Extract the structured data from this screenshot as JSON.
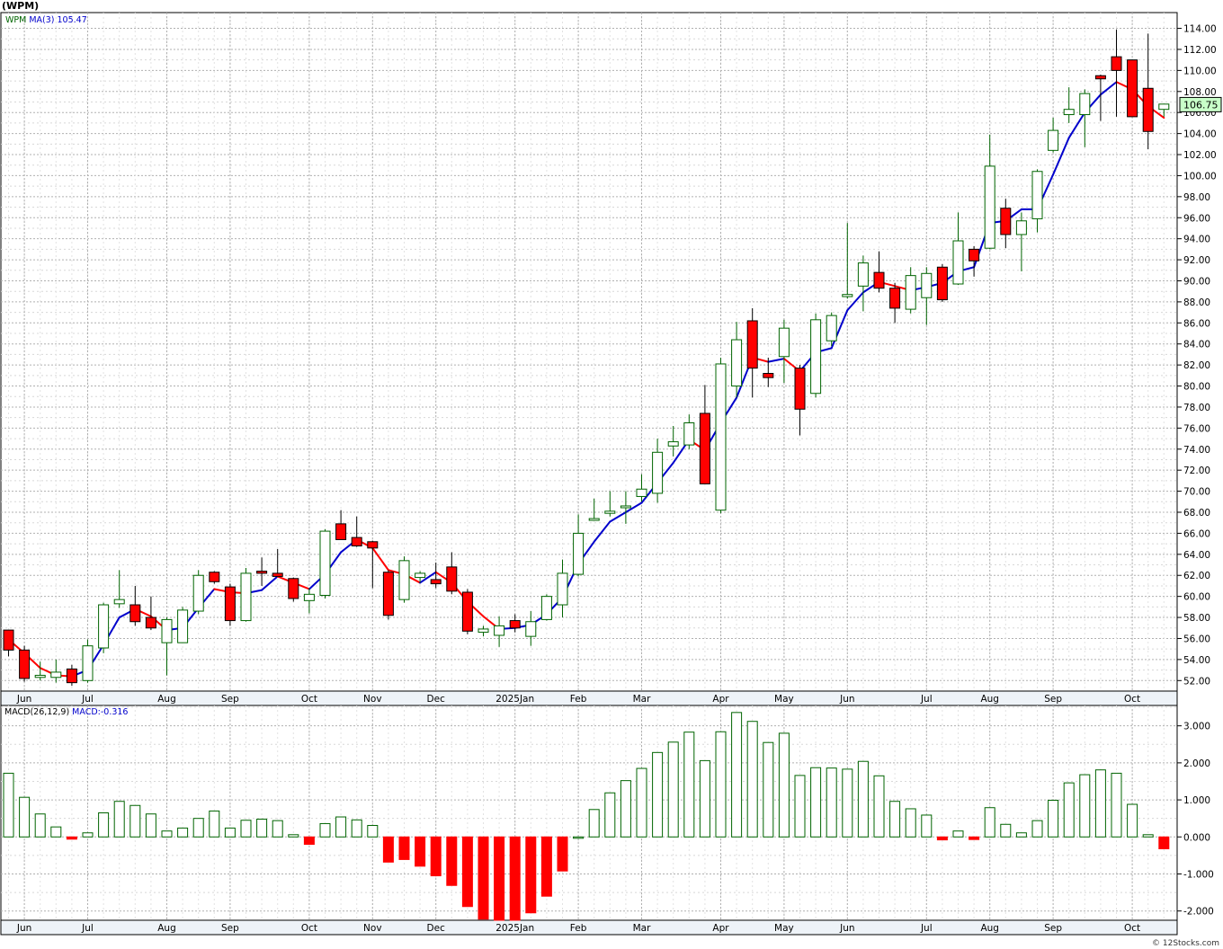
{
  "title": "(WPM)",
  "footer": "© 12Stocks.com",
  "colors": {
    "up": "#006400",
    "down": "#ff0000",
    "ma_up": "#0000cc",
    "ma_down": "#ff0000",
    "grid": "#b0b0b0",
    "last_bg": "#c8ffc8"
  },
  "chart_data": [
    {
      "type": "candlestick",
      "title": "(WPM)",
      "legend": {
        "symbol": "WPM",
        "ma_label": "MA(3)",
        "ma_value": "105.47"
      },
      "last_price_label": "106.75",
      "ylim": [
        51,
        115.5
      ],
      "y_ticks": [
        "52.00",
        "54.00",
        "56.00",
        "58.00",
        "60.00",
        "62.00",
        "64.00",
        "66.00",
        "68.00",
        "70.00",
        "72.00",
        "74.00",
        "76.00",
        "78.00",
        "80.00",
        "82.00",
        "84.00",
        "86.00",
        "88.00",
        "90.00",
        "92.00",
        "94.00",
        "96.00",
        "98.00",
        "100.00",
        "102.00",
        "104.00",
        "106.00",
        "108.00",
        "110.00",
        "112.00",
        "114.00"
      ],
      "x_labels": [
        {
          "label": "Jun",
          "i": 1
        },
        {
          "label": "Jul",
          "i": 5
        },
        {
          "label": "Aug",
          "i": 10
        },
        {
          "label": "Sep",
          "i": 14
        },
        {
          "label": "Oct",
          "i": 19
        },
        {
          "label": "Nov",
          "i": 23
        },
        {
          "label": "Dec",
          "i": 27
        },
        {
          "label": "2025Jan",
          "i": 32
        },
        {
          "label": "Feb",
          "i": 36
        },
        {
          "label": "Mar",
          "i": 40
        },
        {
          "label": "Apr",
          "i": 45
        },
        {
          "label": "May",
          "i": 49
        },
        {
          "label": "Jun",
          "i": 53
        },
        {
          "label": "Jul",
          "i": 58
        },
        {
          "label": "Aug",
          "i": 62
        },
        {
          "label": "Sep",
          "i": 66
        },
        {
          "label": "Oct",
          "i": 71
        }
      ],
      "candles": [
        {
          "o": 56.8,
          "h": 56.8,
          "l": 54.3,
          "c": 54.9
        },
        {
          "o": 54.9,
          "h": 55.3,
          "l": 51.9,
          "c": 52.2
        },
        {
          "o": 52.3,
          "h": 53.8,
          "l": 52.0,
          "c": 52.5
        },
        {
          "o": 52.3,
          "h": 54.0,
          "l": 51.8,
          "c": 52.8
        },
        {
          "o": 53.1,
          "h": 53.5,
          "l": 51.5,
          "c": 51.8
        },
        {
          "o": 52.0,
          "h": 55.9,
          "l": 51.8,
          "c": 55.3
        },
        {
          "o": 55.1,
          "h": 59.4,
          "l": 54.6,
          "c": 59.2
        },
        {
          "o": 59.3,
          "h": 62.5,
          "l": 58.9,
          "c": 59.7
        },
        {
          "o": 59.2,
          "h": 61.0,
          "l": 57.2,
          "c": 57.6
        },
        {
          "o": 58.0,
          "h": 60.0,
          "l": 56.8,
          "c": 57.0
        },
        {
          "o": 55.6,
          "h": 58.0,
          "l": 52.5,
          "c": 57.8
        },
        {
          "o": 55.6,
          "h": 59.0,
          "l": 55.6,
          "c": 58.7
        },
        {
          "o": 58.6,
          "h": 62.5,
          "l": 58.3,
          "c": 62.0
        },
        {
          "o": 62.3,
          "h": 62.4,
          "l": 61.2,
          "c": 61.4
        },
        {
          "o": 60.9,
          "h": 61.2,
          "l": 57.2,
          "c": 57.7
        },
        {
          "o": 57.7,
          "h": 62.7,
          "l": 57.6,
          "c": 62.2
        },
        {
          "o": 62.4,
          "h": 63.7,
          "l": 61.0,
          "c": 62.2
        },
        {
          "o": 62.2,
          "h": 64.5,
          "l": 61.9,
          "c": 61.9
        },
        {
          "o": 61.7,
          "h": 61.8,
          "l": 59.5,
          "c": 59.8
        },
        {
          "o": 59.6,
          "h": 60.8,
          "l": 58.4,
          "c": 60.2
        },
        {
          "o": 60.1,
          "h": 66.4,
          "l": 59.8,
          "c": 66.2
        },
        {
          "o": 66.9,
          "h": 68.2,
          "l": 65.4,
          "c": 65.4
        },
        {
          "o": 65.6,
          "h": 67.6,
          "l": 64.7,
          "c": 64.8
        },
        {
          "o": 65.2,
          "h": 65.3,
          "l": 60.8,
          "c": 64.6
        },
        {
          "o": 62.3,
          "h": 62.5,
          "l": 57.8,
          "c": 58.2
        },
        {
          "o": 59.7,
          "h": 63.8,
          "l": 59.4,
          "c": 63.4
        },
        {
          "o": 61.8,
          "h": 62.4,
          "l": 61.3,
          "c": 62.2
        },
        {
          "o": 61.6,
          "h": 63.2,
          "l": 60.8,
          "c": 61.2
        },
        {
          "o": 62.8,
          "h": 64.2,
          "l": 60.2,
          "c": 60.5
        },
        {
          "o": 60.4,
          "h": 60.7,
          "l": 56.4,
          "c": 56.7
        },
        {
          "o": 56.6,
          "h": 57.2,
          "l": 56.2,
          "c": 56.9
        },
        {
          "o": 56.3,
          "h": 58.1,
          "l": 55.2,
          "c": 57.2
        },
        {
          "o": 57.7,
          "h": 58.3,
          "l": 56.6,
          "c": 57.0
        },
        {
          "o": 56.2,
          "h": 58.6,
          "l": 55.3,
          "c": 57.6
        },
        {
          "o": 57.8,
          "h": 60.2,
          "l": 57.7,
          "c": 60.0
        },
        {
          "o": 59.2,
          "h": 63.5,
          "l": 58.0,
          "c": 62.2
        },
        {
          "o": 62.1,
          "h": 67.8,
          "l": 61.9,
          "c": 66.0
        },
        {
          "o": 67.3,
          "h": 69.3,
          "l": 67.2,
          "c": 67.4
        },
        {
          "o": 67.9,
          "h": 70.0,
          "l": 67.6,
          "c": 68.1
        },
        {
          "o": 68.5,
          "h": 70.0,
          "l": 66.9,
          "c": 68.6
        },
        {
          "o": 69.5,
          "h": 71.6,
          "l": 69.0,
          "c": 70.2
        },
        {
          "o": 69.8,
          "h": 75.0,
          "l": 68.9,
          "c": 73.7
        },
        {
          "o": 74.3,
          "h": 76.2,
          "l": 73.3,
          "c": 74.7
        },
        {
          "o": 74.4,
          "h": 77.3,
          "l": 74.0,
          "c": 76.5
        },
        {
          "o": 77.4,
          "h": 80.1,
          "l": 70.7,
          "c": 70.7
        },
        {
          "o": 68.2,
          "h": 82.7,
          "l": 67.9,
          "c": 82.1
        },
        {
          "o": 80.0,
          "h": 86.1,
          "l": 78.9,
          "c": 84.4
        },
        {
          "o": 86.2,
          "h": 87.4,
          "l": 78.9,
          "c": 81.7
        },
        {
          "o": 81.2,
          "h": 82.7,
          "l": 79.9,
          "c": 80.8
        },
        {
          "o": 82.8,
          "h": 86.3,
          "l": 80.3,
          "c": 85.5
        },
        {
          "o": 81.7,
          "h": 82.0,
          "l": 75.3,
          "c": 77.8
        },
        {
          "o": 79.3,
          "h": 86.9,
          "l": 78.9,
          "c": 86.3
        },
        {
          "o": 84.3,
          "h": 87.0,
          "l": 83.8,
          "c": 86.7
        },
        {
          "o": 88.5,
          "h": 95.5,
          "l": 88.3,
          "c": 88.7
        },
        {
          "o": 89.5,
          "h": 92.4,
          "l": 87.1,
          "c": 91.7
        },
        {
          "o": 90.8,
          "h": 92.8,
          "l": 88.9,
          "c": 89.3
        },
        {
          "o": 89.3,
          "h": 89.8,
          "l": 86.0,
          "c": 87.4
        },
        {
          "o": 87.3,
          "h": 91.3,
          "l": 86.9,
          "c": 90.5
        },
        {
          "o": 88.4,
          "h": 91.3,
          "l": 85.8,
          "c": 90.7
        },
        {
          "o": 91.3,
          "h": 91.6,
          "l": 88.0,
          "c": 88.2
        },
        {
          "o": 89.7,
          "h": 96.5,
          "l": 89.6,
          "c": 93.8
        },
        {
          "o": 93.0,
          "h": 93.3,
          "l": 90.4,
          "c": 91.9
        },
        {
          "o": 93.1,
          "h": 103.9,
          "l": 93.0,
          "c": 100.9
        },
        {
          "o": 96.9,
          "h": 97.8,
          "l": 93.1,
          "c": 94.4
        },
        {
          "o": 94.4,
          "h": 96.5,
          "l": 90.9,
          "c": 95.7
        },
        {
          "o": 95.9,
          "h": 100.6,
          "l": 94.6,
          "c": 100.4
        },
        {
          "o": 102.4,
          "h": 105.5,
          "l": 102.2,
          "c": 104.3
        },
        {
          "o": 105.8,
          "h": 108.4,
          "l": 105.0,
          "c": 106.3
        },
        {
          "o": 105.8,
          "h": 108.2,
          "l": 102.7,
          "c": 107.8
        },
        {
          "o": 109.5,
          "h": 109.6,
          "l": 105.2,
          "c": 109.2
        },
        {
          "o": 111.3,
          "h": 113.9,
          "l": 105.6,
          "c": 110.0
        },
        {
          "o": 111.0,
          "h": 111.0,
          "l": 105.6,
          "c": 105.6
        },
        {
          "o": 108.3,
          "h": 113.5,
          "l": 102.5,
          "c": 104.2
        },
        {
          "o": 106.3,
          "h": 106.8,
          "l": 105.6,
          "c": 106.8
        }
      ],
      "ma3": [
        55.9,
        54.6,
        53.2,
        52.5,
        52.4,
        53.0,
        55.4,
        58.0,
        58.8,
        58.1,
        56.8,
        57.0,
        58.9,
        60.7,
        60.4,
        60.3,
        60.6,
        61.9,
        61.3,
        60.7,
        62.1,
        64.2,
        65.4,
        64.6,
        62.5,
        62.1,
        61.3,
        62.3,
        61.3,
        59.5,
        58.1,
        56.9,
        57.0,
        57.3,
        58.3,
        59.9,
        63.1,
        65.2,
        67.1,
        68.0,
        68.9,
        70.8,
        72.7,
        74.9,
        73.9,
        76.5,
        78.9,
        82.7,
        82.3,
        82.6,
        81.4,
        83.2,
        83.6,
        87.2,
        88.9,
        89.9,
        89.5,
        89.1,
        89.4,
        89.8,
        90.9,
        91.3,
        95.5,
        95.7,
        96.8,
        96.8,
        100.1,
        103.6,
        106.0,
        107.7,
        108.9,
        108.2,
        106.6,
        105.5
      ],
      "ma_legend_value": "105.47"
    },
    {
      "type": "bar",
      "title": "MACD(26,12,9)",
      "legend": {
        "name": "MACD(26,12,9)",
        "value_label": "MACD:-0.316"
      },
      "ylim": [
        -2.25,
        3.55
      ],
      "y_ticks": [
        "3.000",
        "2.000",
        "1.000",
        "0.000",
        "-1.000",
        "-2.000"
      ],
      "values": [
        1.72,
        1.07,
        0.62,
        0.27,
        -0.06,
        0.11,
        0.65,
        0.96,
        0.85,
        0.62,
        0.16,
        0.24,
        0.5,
        0.7,
        0.24,
        0.45,
        0.48,
        0.44,
        0.06,
        -0.2,
        0.36,
        0.54,
        0.46,
        0.31,
        -0.68,
        -0.61,
        -0.79,
        -1.05,
        -1.31,
        -1.88,
        -2.22,
        -2.25,
        -2.25,
        -2.05,
        -1.6,
        -0.92,
        0.0,
        0.74,
        1.19,
        1.52,
        1.85,
        2.28,
        2.56,
        2.83,
        2.06,
        2.84,
        3.36,
        3.12,
        2.55,
        2.8,
        1.66,
        1.87,
        1.86,
        1.83,
        2.04,
        1.65,
        0.96,
        0.76,
        0.59,
        -0.08,
        0.16,
        -0.07,
        0.79,
        0.34,
        0.11,
        0.44,
        0.99,
        1.46,
        1.68,
        1.81,
        1.72,
        0.88,
        0.06,
        -0.32
      ]
    }
  ]
}
